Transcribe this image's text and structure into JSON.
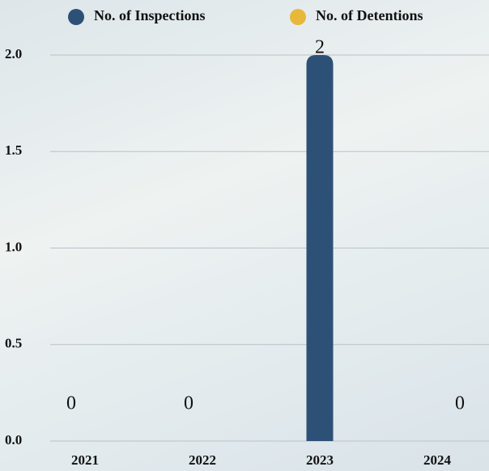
{
  "chart_data": {
    "type": "bar",
    "categories": [
      "2021",
      "2022",
      "2023",
      "2024"
    ],
    "series": [
      {
        "name": "No. of Inspections",
        "color": "#2d5176",
        "values": [
          0,
          0,
          2,
          0
        ]
      },
      {
        "name": "No. of Detentions",
        "color": "#e8b83a",
        "values": [
          0,
          0,
          0,
          0
        ]
      }
    ],
    "ylim": [
      0,
      2
    ],
    "yticks": [
      {
        "value": 0,
        "label": "0.0"
      },
      {
        "value": 0.5,
        "label": "0.5"
      },
      {
        "value": 1,
        "label": "1.0"
      },
      {
        "value": 1.5,
        "label": "1.5"
      },
      {
        "value": 2,
        "label": "2.0"
      }
    ],
    "grid": true
  }
}
